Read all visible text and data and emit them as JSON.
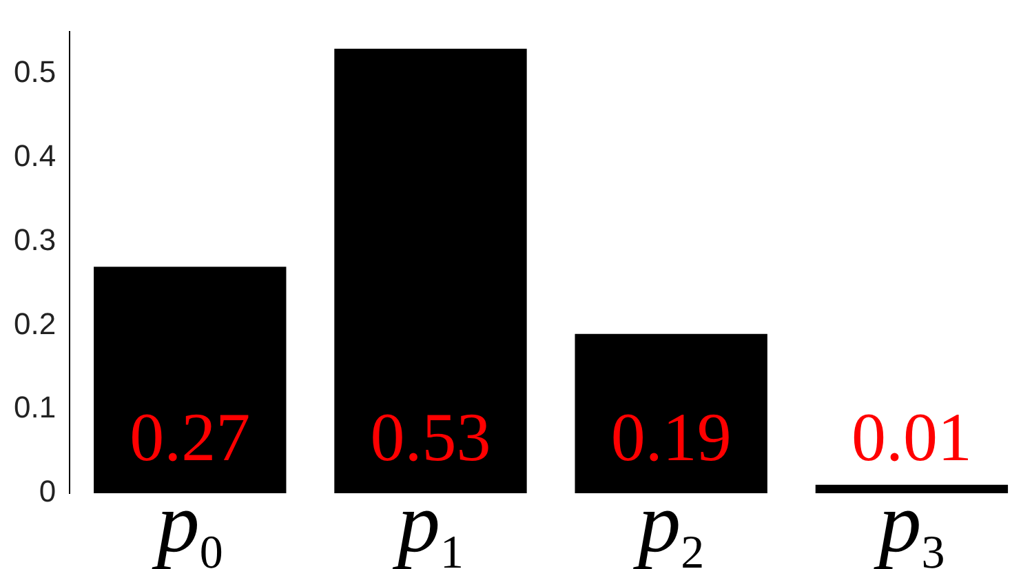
{
  "chart_data": {
    "type": "bar",
    "categories": [
      "p$_{0}$",
      "p$_{1}$",
      "p$_{2}$",
      "p$_{3}$"
    ],
    "values": [
      0.27,
      0.53,
      0.19,
      0.01
    ],
    "color": "#000000",
    "ylim": [
      0,
      0.55
    ],
    "yticks": [
      0,
      0.1,
      0.2,
      0.3,
      0.4,
      0.5
    ],
    "grid": false,
    "legend": false,
    "data_labels": true
  }
}
